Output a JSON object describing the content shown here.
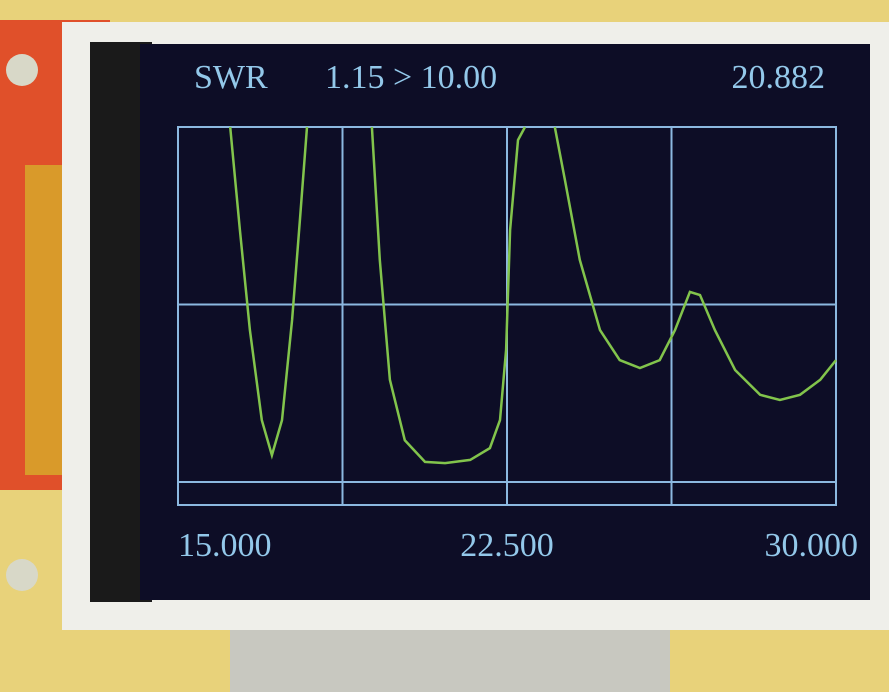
{
  "chart_data": {
    "type": "line",
    "title": "SWR",
    "range_label": "1.15 > 10.00",
    "marker_label": "20.882",
    "color": "#82c44c",
    "grid_color": "#8cb8e0",
    "x": [
      16.19,
      16.41,
      16.64,
      16.91,
      17.14,
      17.37,
      17.6,
      17.78,
      17.94,
      18.7,
      19.42,
      19.6,
      19.83,
      20.17,
      20.63,
      21.09,
      21.66,
      22.11,
      22.34,
      22.48,
      22.57,
      22.75,
      22.91,
      23.2,
      23.59,
      23.82,
      24.16,
      24.62,
      25.07,
      25.53,
      25.98,
      26.33,
      26.67,
      26.9,
      27.24,
      27.7,
      28.27,
      28.72,
      29.18,
      29.64,
      30.0
    ],
    "values": [
      10.0,
      7.39,
      4.85,
      2.57,
      1.68,
      2.57,
      5.11,
      7.64,
      10.0,
      null,
      10.0,
      6.63,
      3.59,
      2.06,
      1.51,
      1.48,
      1.56,
      1.86,
      2.57,
      4.35,
      7.39,
      9.67,
      10.0,
      null,
      10.0,
      8.66,
      6.63,
      4.85,
      4.09,
      3.89,
      4.09,
      4.85,
      5.82,
      5.74,
      4.85,
      3.84,
      3.21,
      3.08,
      3.21,
      3.59,
      4.09
    ],
    "xlim": [
      15,
      30
    ],
    "xticks": [
      {
        "value": 15,
        "label": "15.000"
      },
      {
        "value": 22.5,
        "label": "22.500"
      },
      {
        "value": 30,
        "label": "30.000"
      }
    ],
    "xgrid": [
      18.75,
      22.5,
      26.25
    ],
    "ylim": [
      1,
      10
    ],
    "yticks": [
      1,
      5.5,
      10
    ],
    "grid": true
  }
}
